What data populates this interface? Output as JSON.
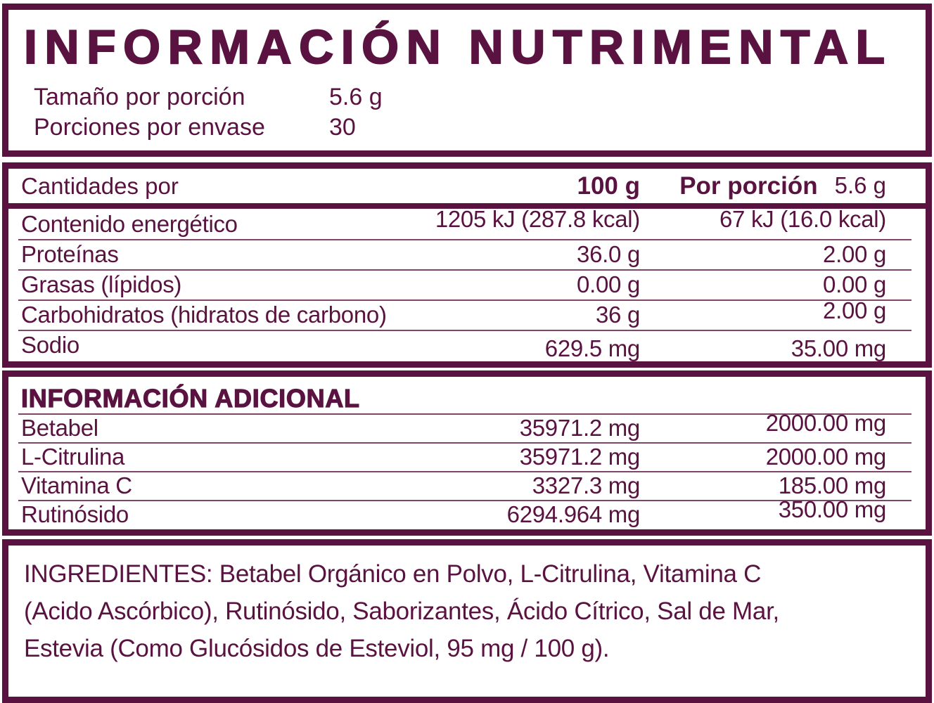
{
  "colors": {
    "brand": "#5a1340",
    "background": "#ffffff"
  },
  "header": {
    "title": "INFORMACIÓN NUTRIMENTAL",
    "serving_size_label": "Tamaño por porción",
    "serving_size_value": "5.6 g",
    "servings_per_container_label": "Porciones por envase",
    "servings_per_container_value": "30"
  },
  "nutrition_table": {
    "amounts_label": "Cantidades por",
    "col_100g": "100 g",
    "col_portion_label": "Por porción",
    "col_portion_size": "5.6 g",
    "rows": [
      {
        "label": "Contenido energético",
        "per100": "1205 kJ (287.8 kcal)",
        "portion": "67 kJ (16.0 kcal)"
      },
      {
        "label": "Proteínas",
        "per100": "36.0 g",
        "portion": "2.00 g"
      },
      {
        "label": "Grasas (lípidos)",
        "per100": "0.00 g",
        "portion": "0.00 g"
      },
      {
        "label": "Carbohidratos (hidratos de carbono)",
        "per100": "36 g",
        "portion": "2.00 g"
      },
      {
        "label": "Sodio",
        "per100": "629.5 mg",
        "portion": "35.00 mg"
      }
    ]
  },
  "additional_info": {
    "heading": "INFORMACIÓN ADICIONAL",
    "rows": [
      {
        "label": "Betabel",
        "per100": "35971.2 mg",
        "portion": "2000.00 mg"
      },
      {
        "label": "L-Citrulina",
        "per100": "35971.2 mg",
        "portion": "2000.00 mg"
      },
      {
        "label": "Vitamina C",
        "per100": "3327.3 mg",
        "portion": "185.00 mg"
      },
      {
        "label": "Rutinósido",
        "per100": "6294.964 mg",
        "portion": "350.00 mg"
      }
    ]
  },
  "ingredients": {
    "text": "INGREDIENTES: Betabel Orgánico en Polvo, L-Citrulina, Vitamina C\n(Acido Ascórbico), Rutinósido, Saborizantes, Ácido Cítrico, Sal de Mar,\nEstevia (Como Glucósidos de Esteviol, 95 mg / 100 g)."
  }
}
